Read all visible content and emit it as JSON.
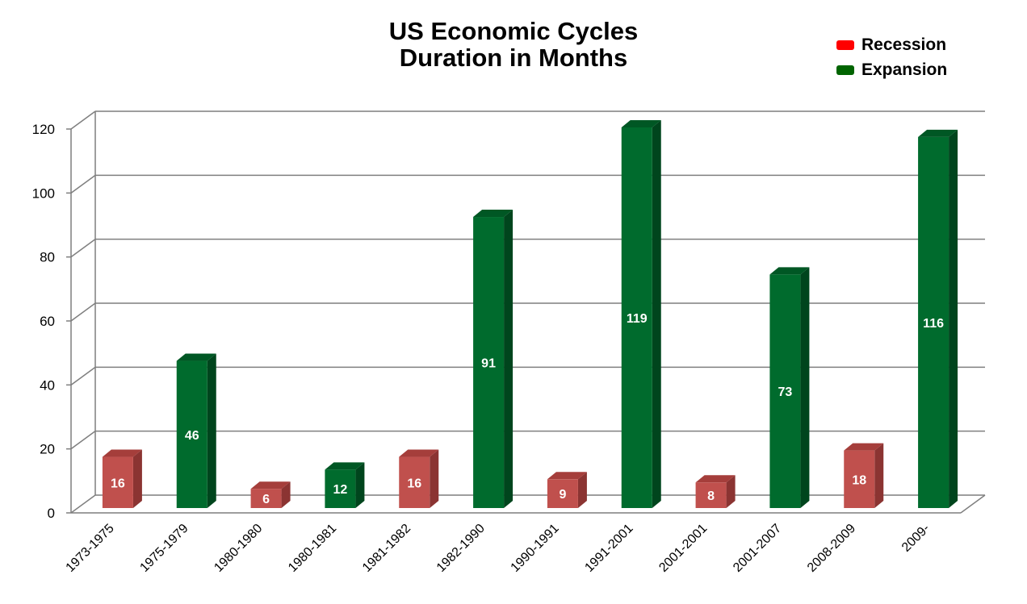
{
  "chart_data": {
    "type": "bar",
    "title_lines": [
      "US Economic Cycles",
      "Duration in Months"
    ],
    "categories": [
      "1973-1975",
      "1975-1979",
      "1980-1980",
      "1980-1981",
      "1981-1982",
      "1982-1990",
      "1990-1991",
      "1991-2001",
      "2001-2001",
      "2001-2007",
      "2008-2009",
      "2009-"
    ],
    "values": [
      16,
      46,
      6,
      12,
      16,
      91,
      9,
      119,
      8,
      73,
      18,
      116
    ],
    "kinds": [
      "Recession",
      "Expansion",
      "Recession",
      "Expansion",
      "Recession",
      "Expansion",
      "Recession",
      "Expansion",
      "Recession",
      "Expansion",
      "Recession",
      "Expansion"
    ],
    "legend": [
      {
        "name": "Recession",
        "color": "#ff0000"
      },
      {
        "name": "Expansion",
        "color": "#006400"
      }
    ],
    "bar_colors": {
      "Recession": {
        "front": "#c0504d",
        "side": "#8b3432",
        "top": "#a53e3b"
      },
      "Expansion": {
        "front": "#006b2d",
        "side": "#00451d",
        "top": "#005724"
      }
    },
    "yticks": [
      0,
      20,
      40,
      60,
      80,
      100,
      120
    ],
    "ylim": [
      0,
      120
    ],
    "grid": true,
    "data_labels": true,
    "legend_position": "top-right"
  }
}
